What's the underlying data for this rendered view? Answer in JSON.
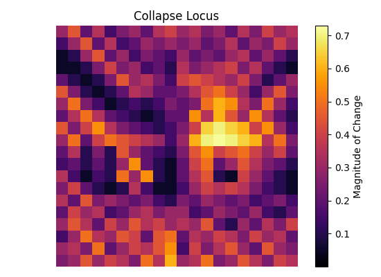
{
  "chart_data": {
    "type": "heatmap",
    "title": "Collapse Locus",
    "colorbar_label": "Magnitude of Change",
    "color_range": [
      0.0,
      0.73
    ],
    "color_ticks": [
      0.1,
      0.2,
      0.3,
      0.4,
      0.5,
      0.6,
      0.7
    ],
    "tick_labels": false,
    "cells": [
      [
        0.3,
        0.45,
        0.2,
        0.35,
        0.15,
        0.25,
        0.3,
        0.2,
        0.35,
        0.4,
        0.3,
        0.35,
        0.25,
        0.3,
        0.2,
        0.35,
        0.25,
        0.4,
        0.3,
        0.35
      ],
      [
        0.15,
        0.3,
        0.45,
        0.2,
        0.35,
        0.15,
        0.2,
        0.3,
        0.25,
        0.3,
        0.25,
        0.3,
        0.2,
        0.25,
        0.35,
        0.2,
        0.3,
        0.25,
        0.4,
        0.3
      ],
      [
        0.05,
        0.1,
        0.3,
        0.45,
        0.2,
        0.3,
        0.15,
        0.25,
        0.2,
        0.15,
        0.3,
        0.2,
        0.25,
        0.2,
        0.3,
        0.35,
        0.2,
        0.3,
        0.2,
        0.1
      ],
      [
        0.05,
        0.05,
        0.1,
        0.25,
        0.4,
        0.25,
        0.3,
        0.15,
        0.2,
        0.1,
        0.35,
        0.25,
        0.3,
        0.35,
        0.4,
        0.25,
        0.35,
        0.2,
        0.1,
        0.05
      ],
      [
        0.2,
        0.1,
        0.05,
        0.1,
        0.25,
        0.45,
        0.3,
        0.35,
        0.25,
        0.15,
        0.4,
        0.45,
        0.4,
        0.35,
        0.3,
        0.4,
        0.25,
        0.1,
        0.2,
        0.3
      ],
      [
        0.45,
        0.25,
        0.1,
        0.05,
        0.1,
        0.2,
        0.35,
        0.3,
        0.2,
        0.2,
        0.25,
        0.35,
        0.45,
        0.5,
        0.4,
        0.3,
        0.15,
        0.3,
        0.45,
        0.25
      ],
      [
        0.3,
        0.5,
        0.25,
        0.15,
        0.05,
        0.1,
        0.15,
        0.1,
        0.15,
        0.25,
        0.2,
        0.25,
        0.5,
        0.6,
        0.55,
        0.35,
        0.25,
        0.5,
        0.3,
        0.15
      ],
      [
        0.2,
        0.35,
        0.5,
        0.35,
        0.2,
        0.15,
        0.1,
        0.05,
        0.1,
        0.2,
        0.2,
        0.55,
        0.35,
        0.6,
        0.45,
        0.3,
        0.55,
        0.35,
        0.2,
        0.1
      ],
      [
        0.45,
        0.25,
        0.4,
        0.55,
        0.35,
        0.25,
        0.2,
        0.15,
        0.1,
        0.15,
        0.25,
        0.4,
        0.65,
        0.7,
        0.65,
        0.6,
        0.4,
        0.55,
        0.3,
        0.15
      ],
      [
        0.3,
        0.5,
        0.2,
        0.4,
        0.5,
        0.45,
        0.4,
        0.35,
        0.3,
        0.15,
        0.3,
        0.6,
        0.7,
        0.72,
        0.7,
        0.65,
        0.6,
        0.35,
        0.5,
        0.25
      ],
      [
        0.2,
        0.35,
        0.1,
        0.25,
        0.1,
        0.45,
        0.3,
        0.2,
        0.15,
        0.1,
        0.25,
        0.45,
        0.55,
        0.4,
        0.45,
        0.5,
        0.4,
        0.3,
        0.4,
        0.2
      ],
      [
        0.15,
        0.2,
        0.1,
        0.2,
        0.1,
        0.3,
        0.55,
        0.2,
        0.1,
        0.05,
        0.2,
        0.4,
        0.5,
        0.2,
        0.3,
        0.45,
        0.35,
        0.25,
        0.2,
        0.1
      ],
      [
        0.35,
        0.15,
        0.05,
        0.15,
        0.1,
        0.5,
        0.3,
        0.55,
        0.1,
        0.05,
        0.2,
        0.35,
        0.45,
        0.1,
        0.05,
        0.4,
        0.3,
        0.2,
        0.1,
        0.05
      ],
      [
        0.25,
        0.4,
        0.2,
        0.1,
        0.05,
        0.1,
        0.35,
        0.15,
        0.05,
        0.05,
        0.15,
        0.3,
        0.4,
        0.35,
        0.4,
        0.35,
        0.25,
        0.15,
        0.1,
        0.05
      ],
      [
        0.35,
        0.2,
        0.45,
        0.25,
        0.3,
        0.25,
        0.2,
        0.25,
        0.15,
        0.1,
        0.25,
        0.2,
        0.3,
        0.25,
        0.2,
        0.25,
        0.15,
        0.2,
        0.25,
        0.15
      ],
      [
        0.2,
        0.4,
        0.3,
        0.35,
        0.15,
        0.2,
        0.3,
        0.35,
        0.25,
        0.3,
        0.3,
        0.15,
        0.2,
        0.3,
        0.25,
        0.2,
        0.3,
        0.15,
        0.1,
        0.2
      ],
      [
        0.3,
        0.45,
        0.35,
        0.2,
        0.4,
        0.3,
        0.45,
        0.35,
        0.4,
        0.3,
        0.35,
        0.3,
        0.45,
        0.2,
        0.1,
        0.3,
        0.2,
        0.35,
        0.25,
        0.4
      ],
      [
        0.15,
        0.3,
        0.5,
        0.35,
        0.3,
        0.45,
        0.4,
        0.2,
        0.45,
        0.5,
        0.2,
        0.35,
        0.3,
        0.4,
        0.35,
        0.25,
        0.4,
        0.3,
        0.35,
        0.2
      ],
      [
        0.3,
        0.35,
        0.25,
        0.5,
        0.2,
        0.3,
        0.4,
        0.35,
        0.45,
        0.55,
        0.15,
        0.4,
        0.25,
        0.35,
        0.45,
        0.3,
        0.2,
        0.45,
        0.3,
        0.25
      ],
      [
        0.25,
        0.3,
        0.45,
        0.3,
        0.4,
        0.35,
        0.25,
        0.5,
        0.35,
        0.6,
        0.3,
        0.35,
        0.5,
        0.25,
        0.3,
        0.45,
        0.35,
        0.25,
        0.4,
        0.35
      ]
    ]
  }
}
